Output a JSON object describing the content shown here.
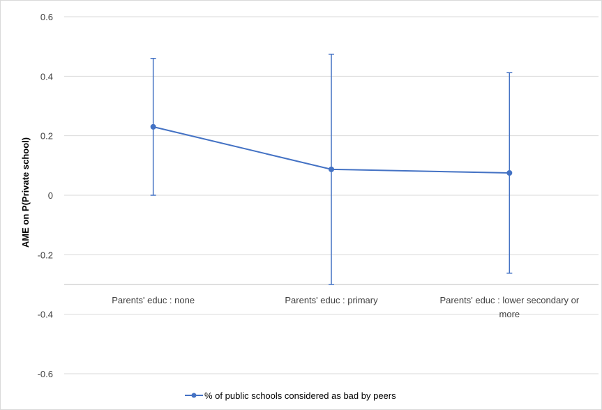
{
  "chart_data": {
    "type": "line",
    "title": "",
    "xlabel": "",
    "ylabel": "AME on P(Private school)",
    "ylim": [
      -0.6,
      0.6
    ],
    "yticks": [
      "0.6",
      "0.4",
      "0.2",
      "0",
      "-0.2",
      "-0.4",
      "-0.6"
    ],
    "ytick_values": [
      0.6,
      0.4,
      0.2,
      0,
      -0.2,
      -0.4,
      -0.6
    ],
    "categories": [
      "Parents' educ : none",
      "Parents' educ : primary",
      "Parents' educ : lower secondary or more"
    ],
    "category_lines": [
      [
        "Parents' educ : none"
      ],
      [
        "Parents' educ : primary"
      ],
      [
        "Parents' educ : lower secondary or",
        "more"
      ]
    ],
    "x_axis_at": -0.3,
    "grid": true,
    "legend_position": "bottom",
    "series": [
      {
        "name": "% of public schools considered as bad by peers",
        "color": "#4472c4",
        "values": [
          0.23,
          0.087,
          0.075
        ],
        "error_low": [
          0.0,
          -0.3,
          -0.262
        ],
        "error_high": [
          0.46,
          0.474,
          0.412
        ]
      }
    ]
  }
}
